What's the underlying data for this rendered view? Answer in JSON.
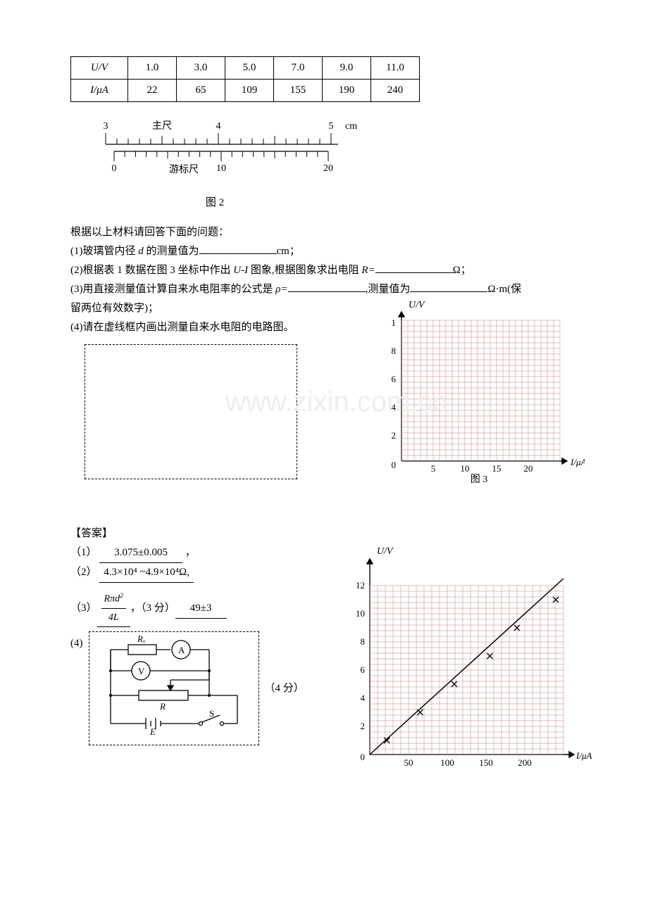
{
  "table": {
    "rows": [
      {
        "label": "U/V",
        "vals": [
          "1.0",
          "3.0",
          "5.0",
          "7.0",
          "9.0",
          "11.0"
        ]
      },
      {
        "label": "I/μA",
        "vals": [
          "22",
          "65",
          "109",
          "155",
          "190",
          "240"
        ]
      }
    ]
  },
  "vernier": {
    "main_label": "主尺",
    "vern_label": "游标尺",
    "unit": "cm",
    "main_ticks": [
      "3",
      "4",
      "5"
    ],
    "vern_ticks": [
      "0",
      "10",
      "20"
    ],
    "caption": "图 2"
  },
  "questions": {
    "intro": "根据以上材料请回答下面的问题：",
    "q1_a": "(1)玻璃管内径 ",
    "q1_var": "d",
    "q1_b": " 的测量值为",
    "q1_unit": "cm；",
    "q2_a": "(2)根据表 1 数据在图 3 坐标中作出 ",
    "q2_var": "U-I",
    "q2_b": " 图象,根据图象求出电阻 ",
    "q2_var2": "R=",
    "q2_unit": "Ω；",
    "q3_a": "(3)用直接测量值计算自来水电阻率的公式是 ",
    "q3_var": "ρ=",
    "q3_b": ",测量值为",
    "q3_unit": "Ω·m(保",
    "q3_cont": "留两位有效数字)；",
    "q4": "(4)请在虚线框内画出测量自来水电阻的电路图。"
  },
  "grid1": {
    "y_label": "U/V",
    "x_label": "I/μA",
    "y_ticks": [
      "1",
      "8",
      "6",
      "4",
      "2",
      "0"
    ],
    "x_ticks": [
      "5",
      "10",
      "15",
      "20"
    ],
    "caption": "图 3",
    "colors": {
      "bg": "#ffffff",
      "grid": "#c08080",
      "axis": "#000000"
    }
  },
  "answers": {
    "header": "【答案】",
    "a1_label": "（1）",
    "a1_val": "3.075±0.005",
    "a1_comma": "，",
    "a2_label": "（2）",
    "a2_val": "4.3×10⁴ ~4.9×10⁴Ω,",
    "a3_label": "（3）",
    "a3_frac_num": "Rπd²",
    "a3_frac_den": "4L",
    "a3_mid": "，（3 分）",
    "a3_val": "49±3",
    "a4_label": "(4)",
    "a4_score": "（4 分）"
  },
  "circuit": {
    "Rx": "Rₓ",
    "A": "A",
    "V": "V",
    "R": "R",
    "E": "E",
    "S": "S"
  },
  "grid2": {
    "y_label": "U/V",
    "x_label": "I/μA",
    "y_ticks": [
      "12",
      "10",
      "8",
      "6",
      "4",
      "2",
      "0"
    ],
    "x_ticks": [
      "50",
      "100",
      "150",
      "200"
    ],
    "colors": {
      "bg": "#ffffff",
      "grid": "#c08080",
      "axis": "#000000"
    },
    "points": [
      [
        22,
        1.0
      ],
      [
        65,
        3.0
      ],
      [
        109,
        5.0
      ],
      [
        155,
        7.0
      ],
      [
        190,
        9.0
      ],
      [
        240,
        11.0
      ]
    ]
  }
}
